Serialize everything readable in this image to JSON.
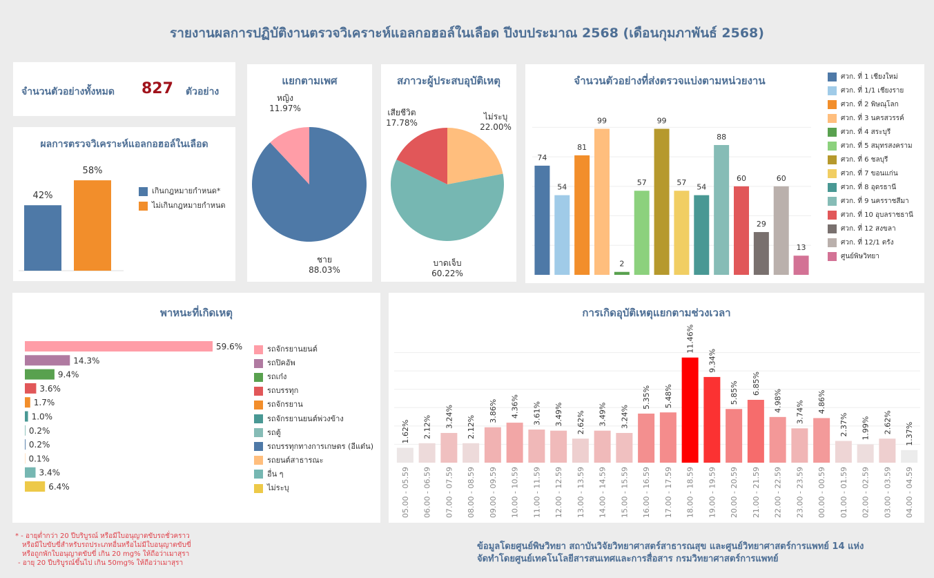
{
  "title": "รายงานผลการปฏิบัติงานตรวจวิเคราะห์แอลกอฮอล์ในเลือด ปีงบประมาณ 2568 (เดือนกุมภาพันธ์ 2568)",
  "total": {
    "label": "จำนวนตัวอย่างทั้งหมด",
    "value": "827",
    "unit": "ตัวอย่าง"
  },
  "footnote": [
    "* - อายุต่ำกว่า 20 ปีบริบูรณ์ หรือมีใบอนุญาตขับรถชั่วคราว",
    "หรือมีใบขับขี่สำหรับรถประเภทอื่นหรือไม่มีใบอนุญาตขับขี่",
    "หรือถูกพักใบอนุญาตขับขี่ เกิน 20 mg% ให้ถือว่าเมาสุรา",
    "- อายุ 20 ปีบริบูรณ์ขึ้นไป เกิน 50mg% ให้ถือว่าเมาสุรา"
  ],
  "credit": [
    "ข้อมูลโดยศูนย์พิษวิทยา สถาบันวิจัยวิทยาศาสตร์สาธารณสุข และศูนย์วิทยาศาสตร์การแพทย์ 14 แห่ง",
    "จัดทำโดยศูนย์เทคโนโลยีสารสนเทศและการสื่อสาร กรมวิทยาศาสตร์การแพทย์"
  ],
  "colors": {
    "title": "#4e6f95",
    "total_value": "#a0121b",
    "footnote": "#e0414a"
  },
  "chart_data": [
    {
      "id": "result",
      "type": "bar",
      "title": "ผลการตรวจวิเคราะห์แอลกอฮอล์ในเลือด",
      "categories": [
        "เกินกฎหมายกำหนด*",
        "ไม่เกินกฎหมายกำหนด"
      ],
      "values": [
        42,
        58
      ],
      "labels": [
        "42%",
        "58%"
      ],
      "colors": [
        "#4e79a7",
        "#f28e2b"
      ],
      "legend": "right",
      "ylim": [
        0,
        70
      ]
    },
    {
      "id": "gender",
      "type": "pie",
      "title": "แยกตามเพศ",
      "categories": [
        "ชาย",
        "หญิง"
      ],
      "values": [
        88.03,
        11.97
      ],
      "labels": [
        "88.03%",
        "11.97%"
      ],
      "colors": [
        "#4e79a7",
        "#ff9da7"
      ]
    },
    {
      "id": "status",
      "type": "pie",
      "title": "สภาวะผู้ประสบอุบัติเหตุ",
      "categories": [
        "ไม่ระบุ",
        "บาดเจ็บ",
        "เสียชีวิต"
      ],
      "values": [
        22.0,
        60.22,
        17.78
      ],
      "labels": [
        "22.00%",
        "60.22%",
        "17.78%"
      ],
      "colors": [
        "#ffbe7d",
        "#76b7b2",
        "#e15759"
      ]
    },
    {
      "id": "units",
      "type": "bar",
      "title": "จำนวนตัวอย่างที่ส่งตรวจแบ่งตามหน่วยงาน",
      "categories": [
        "ศวก. ที่ 1 เชียงใหม่",
        "ศวก. ที่ 1/1 เชียงราย",
        "ศวก. ที่ 2 พิษณุโลก",
        "ศวก. ที่ 3 นครสวรรค์",
        "ศวก. ที่ 4 สระบุรี",
        "ศวก. ที่ 5 สมุทรสงคราม",
        "ศวก. ที่ 6 ชลบุรี",
        "ศวก. ที่ 7 ขอนแก่น",
        "ศวก. ที่ 8 อุดรธานี",
        "ศวก. ที่ 9 นครราชสีมา",
        "ศวก. ที่ 10 อุบลราชธานี",
        "ศวก. ที่ 12 สงขลา",
        "ศวก. ที่ 12/1 ตรัง",
        "ศูนย์พิษวิทยา"
      ],
      "values": [
        74,
        54,
        81,
        99,
        2,
        57,
        99,
        57,
        54,
        88,
        60,
        29,
        60,
        13
      ],
      "colors": [
        "#4e79a7",
        "#a0cbe8",
        "#f28e2b",
        "#ffbe7d",
        "#59a14f",
        "#8cd17d",
        "#b6992d",
        "#f1ce63",
        "#499894",
        "#86bcb6",
        "#e15759",
        "#79706e",
        "#bab0ac",
        "#d37295"
      ],
      "ylim": [
        0,
        110
      ],
      "grid": true,
      "legend": "right"
    },
    {
      "id": "vehicle",
      "type": "bar",
      "orientation": "horizontal",
      "title": "พาหนะที่เกิดเหตุ",
      "categories": [
        "รถจักรยานยนต์",
        "รถปิคอัพ",
        "รถเก๋ง",
        "รถบรรทุก",
        "รถจักรยาน",
        "รถจักรยานยนต์พ่วงข้าง",
        "รถตู้",
        "รถบรรทุกทางการเกษตร (อีแต๋น)",
        "รถยนต์สาธารณะ",
        "อื่น ๆ",
        "ไม่ระบุ"
      ],
      "values": [
        59.6,
        14.3,
        9.4,
        3.6,
        1.7,
        1.0,
        0.2,
        0.2,
        0.1,
        3.4,
        6.4
      ],
      "labels": [
        "59.6%",
        "14.3%",
        "9.4%",
        "3.6%",
        "1.7%",
        "1.0%",
        "0.2%",
        "0.2%",
        "0.1%",
        "3.4%",
        "6.4%"
      ],
      "colors": [
        "#ff9da7",
        "#b07aa1",
        "#59a14f",
        "#e15759",
        "#f28e2b",
        "#499894",
        "#86bcb6",
        "#4e79a7",
        "#ffbe7d",
        "#76b7b2",
        "#edc948"
      ],
      "legend": "right"
    },
    {
      "id": "time",
      "type": "bar",
      "title": "การเกิดอุบัติเหตุแยกตามช่วงเวลา",
      "categories": [
        "05.00 - 05.59",
        "06.00 - 06.59",
        "07.00 - 07.59",
        "08.00 - 08.59",
        "09.00 - 09.59",
        "10.00 - 10.59",
        "11.00 - 11.59",
        "12.00 - 12.59",
        "13.00 - 13.59",
        "14.00 - 14.59",
        "15.00 - 15.59",
        "16.00 - 16.59",
        "17.00 - 17.59",
        "18.00 - 18.59",
        "19.00 - 19.59",
        "20.00 - 20.59",
        "21.00 - 21.59",
        "22.00 - 22.59",
        "23.00 - 23.59",
        "00.00 - 00.59",
        "01.00 - 01.59",
        "02.00 - 02.59",
        "03.00 - 03.59",
        "04.00 - 04.59"
      ],
      "values": [
        1.62,
        2.12,
        3.24,
        2.12,
        3.86,
        4.36,
        3.61,
        3.49,
        2.62,
        3.49,
        3.24,
        5.35,
        5.48,
        11.46,
        9.34,
        5.85,
        6.85,
        4.98,
        3.74,
        4.86,
        2.37,
        1.99,
        2.62,
        1.37
      ],
      "labels": [
        "1.62%",
        "2.12%",
        "3.24%",
        "2.12%",
        "3.86%",
        "4.36%",
        "3.61%",
        "3.49%",
        "2.62%",
        "3.49%",
        "3.24%",
        "5.35%",
        "5.48%",
        "11.46%",
        "9.34%",
        "5.85%",
        "6.85%",
        "4.98%",
        "3.74%",
        "4.86%",
        "2.37%",
        "1.99%",
        "2.62%",
        "1.37%"
      ],
      "color_scale": [
        "#ececec",
        "#ff0000"
      ],
      "ylim": [
        0,
        14
      ],
      "grid": true
    }
  ]
}
